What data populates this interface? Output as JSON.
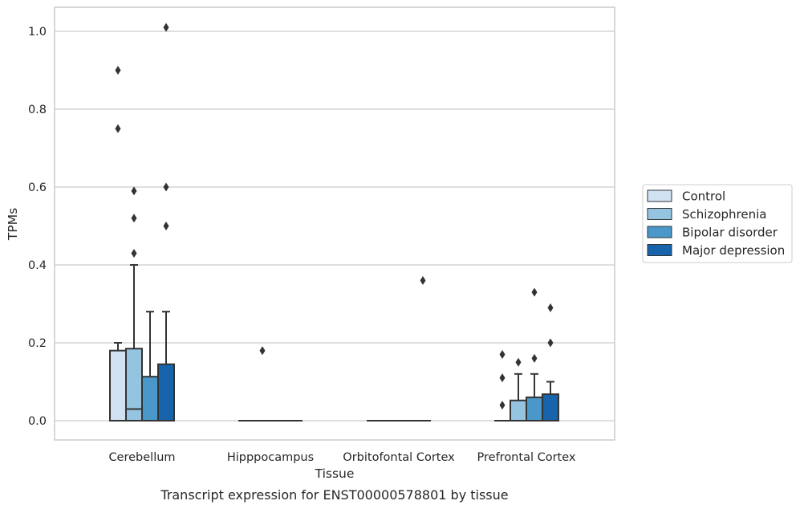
{
  "chart_data": {
    "type": "box",
    "caption": "Transcript expression for ENST00000578801 by tissue",
    "xlabel": "Tissue",
    "ylabel": "TPMs",
    "ylim": [
      -0.05,
      1.06
    ],
    "yticks": [
      0.0,
      0.2,
      0.4,
      0.6,
      0.8,
      1.0
    ],
    "ytick_labels": [
      "0.0",
      "0.2",
      "0.4",
      "0.6",
      "0.8",
      "1.0"
    ],
    "grid": true,
    "legend_position": "right",
    "categories": [
      "Cerebellum",
      "Hipppocampus",
      "Orbitofontal Cortex",
      "Prefrontal Cortex"
    ],
    "series": [
      {
        "name": "Control",
        "color": "#d0e1f2",
        "boxes": [
          {
            "q1": 0.0,
            "median": 0.0,
            "q3": 0.18,
            "whisker_low": 0.0,
            "whisker_high": 0.2,
            "outliers": [
              0.75,
              0.9
            ]
          },
          {
            "q1": 0.0,
            "median": 0.0,
            "q3": 0.0,
            "whisker_low": 0.0,
            "whisker_high": 0.0,
            "outliers": []
          },
          {
            "q1": 0.0,
            "median": 0.0,
            "q3": 0.0,
            "whisker_low": 0.0,
            "whisker_high": 0.0,
            "outliers": []
          },
          {
            "q1": 0.0,
            "median": 0.0,
            "q3": 0.0,
            "whisker_low": 0.0,
            "whisker_high": 0.0,
            "outliers": [
              0.04,
              0.11,
              0.17
            ]
          }
        ]
      },
      {
        "name": "Schizophrenia",
        "color": "#94c4df",
        "boxes": [
          {
            "q1": 0.0,
            "median": 0.03,
            "q3": 0.185,
            "whisker_low": 0.0,
            "whisker_high": 0.4,
            "outliers": [
              0.43,
              0.52,
              0.59
            ]
          },
          {
            "q1": 0.0,
            "median": 0.0,
            "q3": 0.0,
            "whisker_low": 0.0,
            "whisker_high": 0.0,
            "outliers": [
              0.18
            ]
          },
          {
            "q1": 0.0,
            "median": 0.0,
            "q3": 0.0,
            "whisker_low": 0.0,
            "whisker_high": 0.0,
            "outliers": []
          },
          {
            "q1": 0.0,
            "median": 0.0,
            "q3": 0.052,
            "whisker_low": 0.0,
            "whisker_high": 0.12,
            "outliers": [
              0.15
            ]
          }
        ]
      },
      {
        "name": "Bipolar disorder",
        "color": "#4a98c9",
        "boxes": [
          {
            "q1": 0.0,
            "median": 0.0,
            "q3": 0.113,
            "whisker_low": 0.0,
            "whisker_high": 0.28,
            "outliers": []
          },
          {
            "q1": 0.0,
            "median": 0.0,
            "q3": 0.0,
            "whisker_low": 0.0,
            "whisker_high": 0.0,
            "outliers": []
          },
          {
            "q1": 0.0,
            "median": 0.0,
            "q3": 0.0,
            "whisker_low": 0.0,
            "whisker_high": 0.0,
            "outliers": []
          },
          {
            "q1": 0.0,
            "median": 0.0,
            "q3": 0.06,
            "whisker_low": 0.0,
            "whisker_high": 0.12,
            "outliers": [
              0.16,
              0.33
            ]
          }
        ]
      },
      {
        "name": "Major depression",
        "color": "#1764ab",
        "boxes": [
          {
            "q1": 0.0,
            "median": 0.0,
            "q3": 0.145,
            "whisker_low": 0.0,
            "whisker_high": 0.28,
            "outliers": [
              0.5,
              0.6,
              1.01
            ]
          },
          {
            "q1": 0.0,
            "median": 0.0,
            "q3": 0.0,
            "whisker_low": 0.0,
            "whisker_high": 0.0,
            "outliers": []
          },
          {
            "q1": 0.0,
            "median": 0.0,
            "q3": 0.0,
            "whisker_low": 0.0,
            "whisker_high": 0.0,
            "outliers": [
              0.36
            ]
          },
          {
            "q1": 0.0,
            "median": 0.0,
            "q3": 0.068,
            "whisker_low": 0.0,
            "whisker_high": 0.1,
            "outliers": [
              0.2,
              0.29
            ]
          }
        ]
      }
    ],
    "colors": {
      "grid": "#cccccc",
      "frame": "#cccccc",
      "stroke": "#333333",
      "background": "#ffffff"
    }
  }
}
